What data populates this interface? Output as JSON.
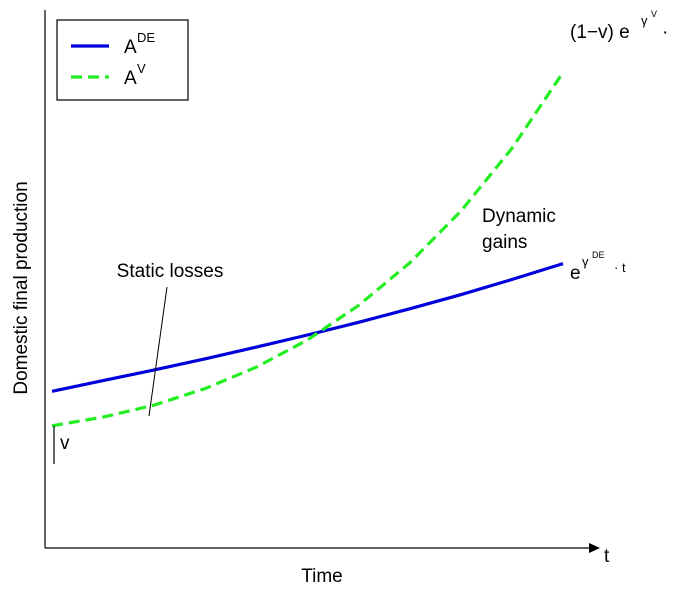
{
  "chart_data": {
    "type": "line",
    "xlabel": "Time",
    "ylabel": "Domestic final production",
    "x_axis_end_label": "t",
    "xlim": [
      0,
      10
    ],
    "ylim": [
      0,
      10
    ],
    "grid": false,
    "legend_position": "top-left",
    "colors": {
      "A_DE": "#0000dd",
      "A_V": "#22ee22",
      "axis": "#000000"
    },
    "series": [
      {
        "name_base": "A",
        "name_sup": "DE",
        "color": "#0000dd",
        "style": "solid",
        "x": [
          0,
          1,
          2,
          3,
          4,
          5,
          6,
          7,
          8,
          9,
          10
        ],
        "values": [
          2.63,
          2.94,
          3.25,
          3.57,
          3.91,
          4.26,
          4.63,
          5.02,
          5.43,
          5.87,
          6.33
        ]
      },
      {
        "name_base": "A",
        "name_sup": "V",
        "color": "#22ee22",
        "style": "dashed",
        "x": [
          0,
          1,
          2,
          3,
          4,
          5,
          6,
          7,
          8,
          9,
          10
        ],
        "values": [
          1.63,
          1.88,
          2.23,
          2.71,
          3.33,
          4.12,
          5.12,
          6.35,
          7.85,
          9.67,
          11.87
        ]
      }
    ],
    "annotations": {
      "static_losses": "Static losses",
      "dynamic_gains_line1": "Dynamic",
      "dynamic_gains_line2": "gains",
      "v_gap": "v",
      "end_v_prefix": "(1−v) e",
      "end_v_sup": "γ",
      "end_v_subsup": "V",
      "end_v_suffix": "·",
      "end_de_prefix": "e",
      "end_de_sup": "γ",
      "end_de_subsup": "DE",
      "end_de_suffix": "· t"
    }
  }
}
